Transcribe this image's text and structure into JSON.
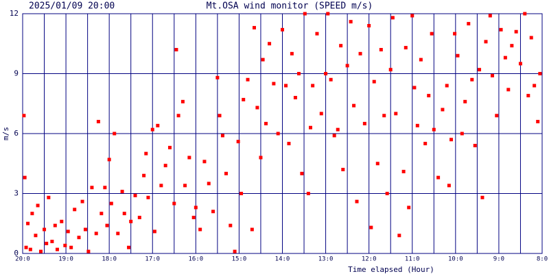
{
  "chart_data": {
    "type": "scatter",
    "title": "Mt.OSA wind monitor (SPEED m/s)",
    "subtitle": "2025/01/09 20:00",
    "xlabel": "Time elapsed (Hour)",
    "ylabel": "m/s",
    "xlim": [
      0,
      12
    ],
    "ylim": [
      0,
      12
    ],
    "xticks": [
      {
        "value": 0,
        "label": "20:0"
      },
      {
        "value": 1,
        "label": "19:0"
      },
      {
        "value": 2,
        "label": "18:0"
      },
      {
        "value": 3,
        "label": "17:0"
      },
      {
        "value": 4,
        "label": "16:0"
      },
      {
        "value": 5,
        "label": "15:0"
      },
      {
        "value": 6,
        "label": "14:0"
      },
      {
        "value": 7,
        "label": "13:0"
      },
      {
        "value": 8,
        "label": "12:0"
      },
      {
        "value": 9,
        "label": "11:0"
      },
      {
        "value": 10,
        "label": "10:0"
      },
      {
        "value": 11,
        "label": "9:0"
      },
      {
        "value": 12,
        "label": "8:0"
      }
    ],
    "xminor": [
      0.5,
      1.5,
      2.5,
      3.5,
      4.5,
      5.5,
      6.5,
      7.5,
      8.5,
      9.5,
      10.5,
      11.5
    ],
    "yticks": [
      0,
      3,
      6,
      9,
      12
    ],
    "grid": true,
    "grid_color": "#000080",
    "series": [
      {
        "color": "#ff0000",
        "x": [
          0.03,
          0.05,
          0.08,
          0.12,
          0.18,
          0.22,
          0.3,
          0.35,
          0.42,
          0.5,
          0.55,
          0.6,
          0.68,
          0.75,
          0.8,
          0.9,
          0.98,
          1.05,
          1.12,
          1.2,
          1.3,
          1.38,
          1.45,
          1.52,
          1.6,
          1.7,
          1.75,
          1.82,
          1.9,
          1.95,
          2.0,
          2.05,
          2.12,
          2.2,
          2.3,
          2.35,
          2.45,
          2.5,
          2.6,
          2.7,
          2.8,
          2.85,
          2.9,
          3.0,
          3.05,
          3.12,
          3.2,
          3.3,
          3.4,
          3.5,
          3.55,
          3.6,
          3.7,
          3.75,
          3.85,
          3.95,
          4.0,
          4.1,
          4.2,
          4.3,
          4.4,
          4.5,
          4.55,
          4.62,
          4.7,
          4.8,
          4.9,
          4.98,
          5.05,
          5.1,
          5.2,
          5.3,
          5.35,
          5.42,
          5.5,
          5.55,
          5.62,
          5.7,
          5.8,
          5.9,
          6.0,
          6.08,
          6.15,
          6.22,
          6.3,
          6.38,
          6.45,
          6.52,
          6.6,
          6.65,
          6.7,
          6.8,
          6.9,
          7.0,
          7.05,
          7.12,
          7.2,
          7.28,
          7.35,
          7.4,
          7.5,
          7.58,
          7.65,
          7.72,
          7.8,
          7.9,
          8.0,
          8.05,
          8.12,
          8.2,
          8.28,
          8.35,
          8.42,
          8.5,
          8.55,
          8.62,
          8.7,
          8.8,
          8.85,
          8.92,
          9.0,
          9.05,
          9.12,
          9.2,
          9.3,
          9.38,
          9.45,
          9.5,
          9.6,
          9.7,
          9.8,
          9.85,
          9.9,
          9.98,
          10.05,
          10.15,
          10.22,
          10.3,
          10.38,
          10.45,
          10.55,
          10.62,
          10.7,
          10.8,
          10.85,
          10.95,
          11.05,
          11.15,
          11.22,
          11.3,
          11.4,
          11.5,
          11.6,
          11.68,
          11.75,
          11.82,
          11.9,
          11.95
        ],
        "values": [
          6.9,
          3.8,
          0.3,
          1.5,
          0.2,
          2.0,
          0.9,
          2.4,
          0.1,
          1.2,
          0.5,
          2.8,
          0.6,
          1.4,
          0.2,
          1.6,
          0.4,
          1.1,
          0.3,
          2.2,
          0.8,
          2.6,
          1.2,
          0.1,
          3.3,
          1.0,
          6.6,
          2.0,
          3.3,
          1.4,
          4.7,
          2.5,
          6.0,
          1.0,
          3.1,
          2.0,
          0.3,
          1.6,
          2.9,
          1.8,
          3.9,
          5.0,
          2.8,
          6.2,
          1.1,
          6.4,
          3.4,
          4.4,
          5.3,
          2.5,
          10.2,
          6.9,
          7.6,
          3.4,
          4.8,
          1.8,
          2.3,
          1.2,
          4.6,
          3.5,
          2.1,
          8.8,
          6.9,
          5.9,
          4.0,
          1.4,
          0.1,
          5.6,
          3.0,
          7.7,
          8.7,
          1.2,
          11.3,
          7.3,
          4.8,
          9.7,
          6.5,
          10.5,
          8.5,
          6.0,
          11.2,
          8.4,
          5.5,
          10.0,
          7.8,
          9.0,
          4.0,
          12.0,
          3.0,
          6.3,
          8.4,
          11.0,
          7.0,
          9.0,
          12.0,
          8.7,
          5.9,
          6.2,
          10.4,
          4.2,
          9.4,
          11.6,
          7.4,
          2.6,
          10.0,
          6.5,
          11.4,
          1.3,
          8.6,
          4.5,
          10.2,
          6.9,
          3.0,
          9.2,
          11.8,
          7.0,
          0.9,
          4.1,
          10.3,
          2.3,
          11.9,
          8.3,
          6.4,
          9.7,
          5.5,
          7.9,
          11.0,
          6.2,
          3.8,
          7.2,
          8.4,
          3.4,
          5.7,
          11.0,
          9.9,
          6.0,
          7.6,
          11.5,
          8.7,
          5.4,
          9.2,
          2.8,
          10.6,
          11.9,
          8.9,
          6.9,
          11.2,
          9.8,
          8.2,
          10.4,
          11.1,
          9.5,
          12.0,
          7.9,
          10.8,
          8.4,
          6.6,
          9.0
        ]
      }
    ]
  }
}
